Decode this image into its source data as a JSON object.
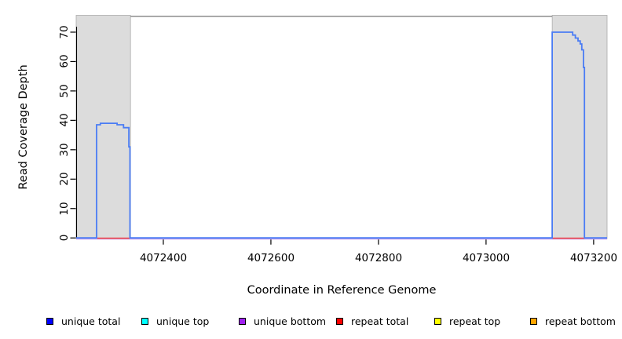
{
  "y_axis": {
    "label": "Read Coverage Depth",
    "ticks": [
      "0",
      "10",
      "20",
      "30",
      "40",
      "50",
      "60",
      "70"
    ]
  },
  "x_axis": {
    "label": "Coordinate in Reference Genome",
    "ticks": [
      "4072400",
      "4072600",
      "4072800",
      "4073000",
      "4073200"
    ]
  },
  "legend": {
    "items": [
      {
        "label": "unique total",
        "color": "#0000FF"
      },
      {
        "label": "unique top",
        "color": "#00FFFF"
      },
      {
        "label": "unique bottom",
        "color": "#A020F0"
      },
      {
        "label": "repeat total",
        "color": "#FF0000"
      },
      {
        "label": "repeat top",
        "color": "#FFFF00"
      },
      {
        "label": "repeat bottom",
        "color": "#FFA500"
      }
    ]
  },
  "chart_data": {
    "type": "line",
    "title": "",
    "xlabel": "Coordinate in Reference Genome",
    "ylabel": "Read Coverage Depth",
    "xlim": [
      4072238,
      4073225
    ],
    "ylim": [
      0,
      75.6
    ],
    "x_ticks": [
      4072400,
      4072600,
      4072800,
      4073000,
      4073200
    ],
    "y_ticks": [
      0,
      10,
      20,
      30,
      40,
      50,
      60,
      70
    ],
    "grid": false,
    "legend_position": "bottom",
    "shaded_regions": [
      {
        "x_from": 4072238,
        "x_to": 4072339
      },
      {
        "x_from": 4073123,
        "x_to": 4073225
      }
    ],
    "ceiling_line": {
      "x_from": 4072339,
      "x_to": 4073123,
      "value": 75.4
    },
    "series": [
      {
        "name": "unique total",
        "legend_color": "#0000FF",
        "line_color": "#4A7CF4",
        "step_points": [
          [
            4072238,
            0
          ],
          [
            4072276,
            0
          ],
          [
            4072276,
            38.5
          ],
          [
            4072283,
            38.5
          ],
          [
            4072283,
            39
          ],
          [
            4072314,
            39
          ],
          [
            4072314,
            38.5
          ],
          [
            4072326,
            38.5
          ],
          [
            4072326,
            37.5
          ],
          [
            4072336,
            37.5
          ],
          [
            4072336,
            31
          ],
          [
            4072338,
            31
          ],
          [
            4072338,
            0
          ],
          [
            4073123,
            0
          ],
          [
            4073123,
            70
          ],
          [
            4073161,
            70
          ],
          [
            4073161,
            69
          ],
          [
            4073166,
            69
          ],
          [
            4073166,
            68
          ],
          [
            4073171,
            68
          ],
          [
            4073171,
            67
          ],
          [
            4073175,
            67
          ],
          [
            4073175,
            66
          ],
          [
            4073178,
            66
          ],
          [
            4073178,
            64
          ],
          [
            4073181,
            64
          ],
          [
            4073181,
            58
          ],
          [
            4073183,
            58
          ],
          [
            4073183,
            0
          ],
          [
            4073225,
            0
          ]
        ]
      },
      {
        "name": "unique top",
        "legend_color": "#00FFFF",
        "visible_in_plot": false
      },
      {
        "name": "unique bottom",
        "legend_color": "#A020F0",
        "line_color": "#C8A2F0",
        "constant_value": 0
      },
      {
        "name": "repeat total",
        "legend_color": "#FF0000",
        "line_color": "#EE4747",
        "zero_segments": [
          [
            4072277,
            4072338
          ],
          [
            4073123,
            4073183
          ]
        ]
      },
      {
        "name": "repeat top",
        "legend_color": "#FFFF00",
        "visible_in_plot": false
      },
      {
        "name": "repeat bottom",
        "legend_color": "#FFA500",
        "visible_in_plot": false
      }
    ],
    "colors": {
      "shade": "#DCDCDC",
      "shade_border": "#ABABAB",
      "ceiling": "#8C8C8C",
      "axis": "#000000"
    }
  }
}
